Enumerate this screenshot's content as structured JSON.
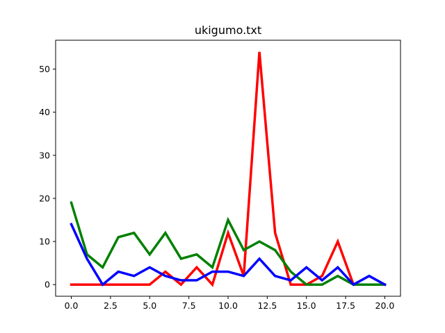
{
  "chart_data": {
    "type": "line",
    "title": "ukigumo.txt",
    "xlabel": "",
    "ylabel": "",
    "xlim": [
      -1.0,
      21.0
    ],
    "ylim": [
      -2.7,
      56.7
    ],
    "grid": false,
    "x": [
      0,
      1,
      2,
      3,
      4,
      5,
      6,
      7,
      8,
      9,
      10,
      11,
      12,
      13,
      14,
      15,
      16,
      17,
      18,
      19,
      20
    ],
    "x_ticks": [
      0.0,
      2.5,
      5.0,
      7.5,
      10.0,
      12.5,
      15.0,
      17.5,
      20.0
    ],
    "x_tick_labels": [
      "0.0",
      "2.5",
      "5.0",
      "7.5",
      "10.0",
      "12.5",
      "15.0",
      "17.5",
      "20.0"
    ],
    "y_ticks": [
      0,
      10,
      20,
      30,
      40,
      50
    ],
    "y_tick_labels": [
      "0",
      "10",
      "20",
      "30",
      "40",
      "50"
    ],
    "series": [
      {
        "name": "red",
        "color": "#ff0000",
        "values": [
          0,
          0,
          0,
          0,
          0,
          0,
          3,
          0,
          4,
          0,
          12,
          2,
          54,
          12,
          0,
          0,
          2,
          10,
          0,
          0,
          0
        ]
      },
      {
        "name": "green",
        "color": "#008000",
        "values": [
          19,
          7,
          4,
          11,
          12,
          7,
          12,
          6,
          7,
          4,
          15,
          8,
          10,
          8,
          3,
          0,
          0,
          2,
          0,
          0,
          0
        ]
      },
      {
        "name": "blue",
        "color": "#0000ff",
        "values": [
          14,
          6,
          0,
          3,
          2,
          4,
          2,
          1,
          1,
          3,
          3,
          2,
          6,
          2,
          1,
          4,
          1,
          4,
          0,
          2,
          0
        ]
      }
    ]
  }
}
